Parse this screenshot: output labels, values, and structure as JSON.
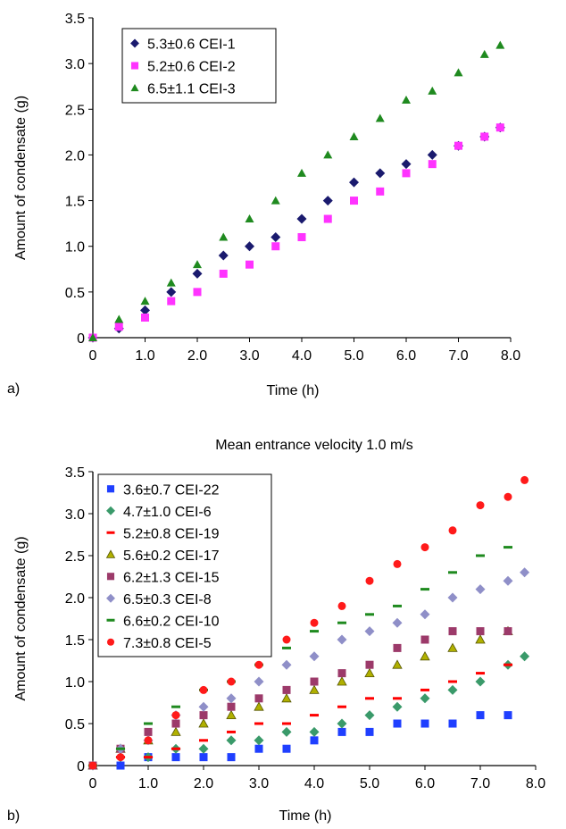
{
  "chart_data": [
    {
      "panel_label": "a)",
      "type": "scatter",
      "title": "",
      "xlabel": "Time (h)",
      "ylabel": "Amount of condensate (g)",
      "xlim": [
        0,
        8.0
      ],
      "ylim": [
        0,
        3.5
      ],
      "x_ticks": [
        "0",
        "1.0",
        "2.0",
        "3.0",
        "4.0",
        "5.0",
        "6.0",
        "7.0",
        "8.0"
      ],
      "y_ticks": [
        "0",
        "0.5",
        "1.0",
        "1.5",
        "2.0",
        "2.5",
        "3.0",
        "3.5"
      ],
      "grid": false,
      "legend_position": "top-left",
      "series": [
        {
          "name": "5.3±0.6 CEI-1",
          "marker": "diamond",
          "color": "#1a1a6e",
          "x": [
            0,
            0.5,
            1.0,
            1.5,
            2.0,
            2.5,
            3.0,
            3.5,
            4.0,
            4.5,
            5.0,
            5.5,
            6.0,
            6.5,
            7.0,
            7.5,
            7.8
          ],
          "y": [
            0,
            0.1,
            0.3,
            0.5,
            0.7,
            0.9,
            1.0,
            1.1,
            1.3,
            1.5,
            1.7,
            1.8,
            1.9,
            2.0,
            2.1,
            2.2,
            2.3
          ]
        },
        {
          "name": "5.2±0.6 CEI-2",
          "marker": "square",
          "color": "#ff33ff",
          "x": [
            0,
            0.5,
            1.0,
            1.5,
            2.0,
            2.5,
            3.0,
            3.5,
            4.0,
            4.5,
            5.0,
            5.5,
            6.0,
            6.5,
            7.0,
            7.5,
            7.8
          ],
          "y": [
            0,
            0.12,
            0.22,
            0.4,
            0.5,
            0.7,
            0.8,
            1.0,
            1.1,
            1.3,
            1.5,
            1.6,
            1.8,
            1.9,
            2.1,
            2.2,
            2.3
          ]
        },
        {
          "name": "6.5±1.1 CEI-3",
          "marker": "triangle",
          "color": "#1f8a1f",
          "x": [
            0,
            0.5,
            1.0,
            1.5,
            2.0,
            2.5,
            3.0,
            3.5,
            4.0,
            4.5,
            5.0,
            5.5,
            6.0,
            6.5,
            7.0,
            7.5,
            7.8
          ],
          "y": [
            0,
            0.2,
            0.4,
            0.6,
            0.8,
            1.1,
            1.3,
            1.5,
            1.8,
            2.0,
            2.2,
            2.4,
            2.6,
            2.7,
            2.9,
            3.1,
            3.2
          ]
        }
      ]
    },
    {
      "panel_label": "b)",
      "type": "scatter",
      "title": "Mean entrance velocity 1.0 m/s",
      "xlabel": "Time (h)",
      "ylabel": "Amount of condensate (g)",
      "xlim": [
        0,
        8.0
      ],
      "ylim": [
        0,
        3.5
      ],
      "x_ticks": [
        "0",
        "1.0",
        "2.0",
        "3.0",
        "4.0",
        "5.0",
        "6.0",
        "7.0",
        "8.0"
      ],
      "y_ticks": [
        "0",
        "0.5",
        "1.0",
        "1.5",
        "2.0",
        "2.5",
        "3.0",
        "3.5"
      ],
      "grid": false,
      "legend_position": "top-left",
      "series": [
        {
          "name": "3.6±0.7 CEI-22",
          "marker": "square",
          "color": "#1f3fff",
          "x": [
            0,
            0.5,
            1.0,
            1.5,
            2.0,
            2.5,
            3.0,
            3.5,
            4.0,
            4.5,
            5.0,
            5.5,
            6.0,
            6.5,
            7.0,
            7.5
          ],
          "y": [
            0,
            0,
            0.1,
            0.1,
            0.1,
            0.1,
            0.2,
            0.2,
            0.3,
            0.4,
            0.4,
            0.5,
            0.5,
            0.5,
            0.6,
            0.6
          ]
        },
        {
          "name": "4.7±1.0 CEI-6",
          "marker": "diamond",
          "color": "#3a9a6a",
          "x": [
            0,
            0.5,
            1.0,
            1.5,
            2.0,
            2.5,
            3.0,
            3.5,
            4.0,
            4.5,
            5.0,
            5.5,
            6.0,
            6.5,
            7.0,
            7.5,
            7.8
          ],
          "y": [
            0,
            0.1,
            0.1,
            0.2,
            0.2,
            0.3,
            0.3,
            0.4,
            0.4,
            0.5,
            0.6,
            0.7,
            0.8,
            0.9,
            1.0,
            1.2,
            1.3
          ]
        },
        {
          "name": "5.2±0.8 CEI-19",
          "marker": "dash",
          "color": "#ff0000",
          "x": [
            0,
            0.5,
            1.0,
            1.5,
            2.0,
            2.5,
            3.0,
            3.5,
            4.0,
            4.5,
            5.0,
            5.5,
            6.0,
            6.5,
            7.0,
            7.5
          ],
          "y": [
            0,
            0.1,
            0.1,
            0.2,
            0.3,
            0.4,
            0.5,
            0.5,
            0.6,
            0.7,
            0.8,
            0.8,
            0.9,
            1.0,
            1.1,
            1.2
          ]
        },
        {
          "name": "5.6±0.2 CEI-17",
          "marker": "triangle-open",
          "color": "#b0b000",
          "x": [
            0,
            0.5,
            1.0,
            1.5,
            2.0,
            2.5,
            3.0,
            3.5,
            4.0,
            4.5,
            5.0,
            5.5,
            6.0,
            6.5,
            7.0,
            7.5
          ],
          "y": [
            0,
            0.2,
            0.3,
            0.4,
            0.5,
            0.6,
            0.7,
            0.8,
            0.9,
            1.0,
            1.1,
            1.2,
            1.3,
            1.4,
            1.5,
            1.6
          ]
        },
        {
          "name": "6.2±1.3 CEI-15",
          "marker": "square",
          "color": "#9c3a6a",
          "x": [
            0,
            0.5,
            1.0,
            1.5,
            2.0,
            2.5,
            3.0,
            3.5,
            4.0,
            4.5,
            5.0,
            5.5,
            6.0,
            6.5,
            7.0,
            7.5
          ],
          "y": [
            0,
            0.2,
            0.4,
            0.5,
            0.6,
            0.7,
            0.8,
            0.9,
            1.0,
            1.1,
            1.2,
            1.4,
            1.5,
            1.6,
            1.6,
            1.6
          ]
        },
        {
          "name": "6.5±0.3 CEI-8",
          "marker": "diamond",
          "color": "#8f8fc8",
          "x": [
            0,
            0.5,
            1.0,
            1.5,
            2.0,
            2.5,
            3.0,
            3.5,
            4.0,
            4.5,
            5.0,
            5.5,
            6.0,
            6.5,
            7.0,
            7.5,
            7.8
          ],
          "y": [
            0,
            0.2,
            0.3,
            0.6,
            0.7,
            0.8,
            1.0,
            1.2,
            1.3,
            1.5,
            1.6,
            1.7,
            1.8,
            2.0,
            2.1,
            2.2,
            2.3
          ]
        },
        {
          "name": "6.6±0.2 CEI-10",
          "marker": "dash",
          "color": "#1f8a1f",
          "x": [
            0,
            0.5,
            1.0,
            1.5,
            2.0,
            2.5,
            3.0,
            3.5,
            4.0,
            4.5,
            5.0,
            5.5,
            6.0,
            6.5,
            7.0,
            7.5
          ],
          "y": [
            0,
            0.2,
            0.5,
            0.7,
            0.9,
            1.0,
            1.2,
            1.4,
            1.6,
            1.7,
            1.8,
            1.9,
            2.1,
            2.3,
            2.5,
            2.6
          ]
        },
        {
          "name": "7.3±0.8 CEI-5",
          "marker": "circle",
          "color": "#ff1a1a",
          "x": [
            0,
            0.5,
            1.0,
            1.5,
            2.0,
            2.5,
            3.0,
            3.5,
            4.0,
            4.5,
            5.0,
            5.5,
            6.0,
            6.5,
            7.0,
            7.5,
            7.8
          ],
          "y": [
            0,
            0.1,
            0.3,
            0.6,
            0.9,
            1.0,
            1.2,
            1.5,
            1.7,
            1.9,
            2.2,
            2.4,
            2.6,
            2.8,
            3.1,
            3.2,
            3.4
          ]
        }
      ]
    }
  ]
}
